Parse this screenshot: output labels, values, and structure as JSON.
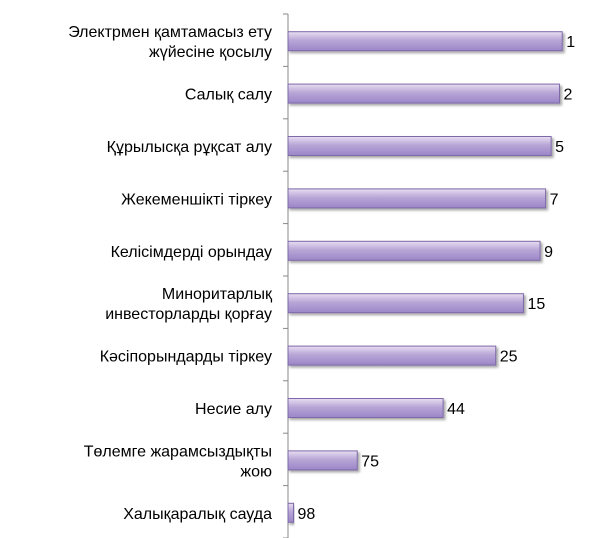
{
  "chart_data": {
    "type": "bar",
    "orientation": "horizontal",
    "categories": [
      "Электрмен қамтамасыз ету жүйесіне қосылу",
      "Салық салу",
      "Құрылысқа рұқсат алу",
      "Жекеменшікті тіркеу",
      "Келісімдерді орындау",
      "Миноритарлық инвесторларды қорғау",
      "Кәсіпорындарды тіркеу",
      "Несие алу",
      "Төлемге жарамсыздықты жою",
      "Халықаралық сауда"
    ],
    "category_lines": [
      [
        "Электрмен қамтамасыз ету",
        "жүйесіне қосылу"
      ],
      [
        "Салық салу"
      ],
      [
        "Құрылысқа рұқсат алу"
      ],
      [
        "Жекеменшікті тіркеу"
      ],
      [
        "Келісімдерді орындау"
      ],
      [
        "Миноритарлық",
        "инвесторларды қорғау"
      ],
      [
        "Кәсіпорындарды тіркеу"
      ],
      [
        "Несие алу"
      ],
      [
        "Төлемге жарамсыздықты",
        "жою"
      ],
      [
        "Халықаралық сауда"
      ]
    ],
    "values": [
      1,
      2,
      5,
      7,
      9,
      15,
      25,
      44,
      75,
      98
    ],
    "value_labels": [
      "1",
      "2",
      "5",
      "7",
      "9",
      "15",
      "25",
      "44",
      "75",
      "98"
    ],
    "axis_reversed": true,
    "grid": false,
    "legend": "none",
    "colors": {
      "bar_fill_top": "#e8def2",
      "bar_fill_mid": "#b8a6d6",
      "bar_fill_bottom": "#9c86c8",
      "bar_stroke": "#7d68a8",
      "axis": "#888888"
    }
  }
}
